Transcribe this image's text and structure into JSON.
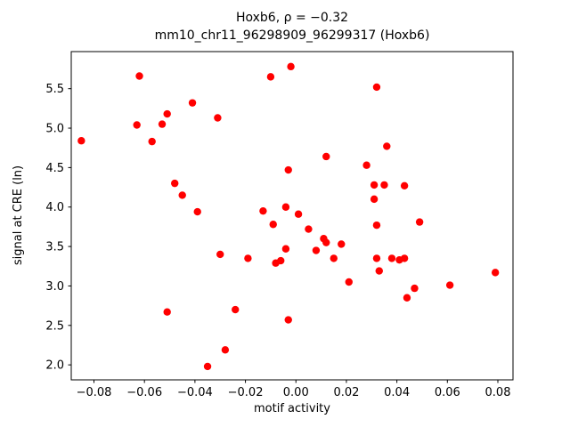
{
  "chart_data": {
    "type": "scatter",
    "title": "Hoxb6, ρ = −0.32",
    "subtitle": "mm10_chr11_96298909_96299317 (Hoxb6)",
    "xlabel": "motif activity",
    "ylabel": "signal at CRE (ln)",
    "xlim": [
      -0.089,
      0.086
    ],
    "ylim": [
      1.81,
      5.97
    ],
    "xticks": [
      -0.08,
      -0.06,
      -0.04,
      -0.02,
      0.0,
      0.02,
      0.04,
      0.06,
      0.08
    ],
    "xtick_labels": [
      "−0.08",
      "−0.06",
      "−0.04",
      "−0.02",
      "0.00",
      "0.02",
      "0.04",
      "0.06",
      "0.08"
    ],
    "yticks": [
      2.0,
      2.5,
      3.0,
      3.5,
      4.0,
      4.5,
      5.0,
      5.5
    ],
    "ytick_labels": [
      "2.0",
      "2.5",
      "3.0",
      "3.5",
      "4.0",
      "4.5",
      "5.0",
      "5.5"
    ],
    "marker_color": "#ff0000",
    "marker_radius": 4.2,
    "grid": false,
    "legend": "none",
    "points": [
      [
        -0.085,
        4.84
      ],
      [
        -0.063,
        5.04
      ],
      [
        -0.062,
        5.66
      ],
      [
        -0.057,
        4.83
      ],
      [
        -0.053,
        5.05
      ],
      [
        -0.051,
        5.18
      ],
      [
        -0.051,
        2.67
      ],
      [
        -0.048,
        4.3
      ],
      [
        -0.045,
        4.15
      ],
      [
        -0.041,
        5.32
      ],
      [
        -0.039,
        3.94
      ],
      [
        -0.035,
        1.98
      ],
      [
        -0.031,
        5.13
      ],
      [
        -0.03,
        3.4
      ],
      [
        -0.028,
        2.19
      ],
      [
        -0.024,
        2.7
      ],
      [
        -0.019,
        3.35
      ],
      [
        -0.013,
        3.95
      ],
      [
        -0.01,
        5.65
      ],
      [
        -0.009,
        3.78
      ],
      [
        -0.008,
        3.29
      ],
      [
        -0.006,
        3.32
      ],
      [
        -0.004,
        4.0
      ],
      [
        -0.004,
        3.47
      ],
      [
        -0.003,
        4.47
      ],
      [
        -0.003,
        2.57
      ],
      [
        -0.002,
        5.78
      ],
      [
        0.001,
        3.91
      ],
      [
        0.005,
        3.72
      ],
      [
        0.008,
        3.45
      ],
      [
        0.011,
        3.6
      ],
      [
        0.012,
        3.55
      ],
      [
        0.012,
        4.64
      ],
      [
        0.015,
        3.35
      ],
      [
        0.018,
        3.53
      ],
      [
        0.021,
        3.05
      ],
      [
        0.028,
        4.53
      ],
      [
        0.031,
        4.28
      ],
      [
        0.031,
        4.1
      ],
      [
        0.032,
        5.52
      ],
      [
        0.032,
        3.77
      ],
      [
        0.032,
        3.35
      ],
      [
        0.033,
        3.19
      ],
      [
        0.035,
        4.28
      ],
      [
        0.036,
        4.77
      ],
      [
        0.038,
        3.35
      ],
      [
        0.041,
        3.33
      ],
      [
        0.043,
        3.35
      ],
      [
        0.043,
        4.27
      ],
      [
        0.044,
        2.85
      ],
      [
        0.047,
        2.97
      ],
      [
        0.049,
        3.81
      ],
      [
        0.061,
        3.01
      ],
      [
        0.079,
        3.17
      ]
    ]
  }
}
